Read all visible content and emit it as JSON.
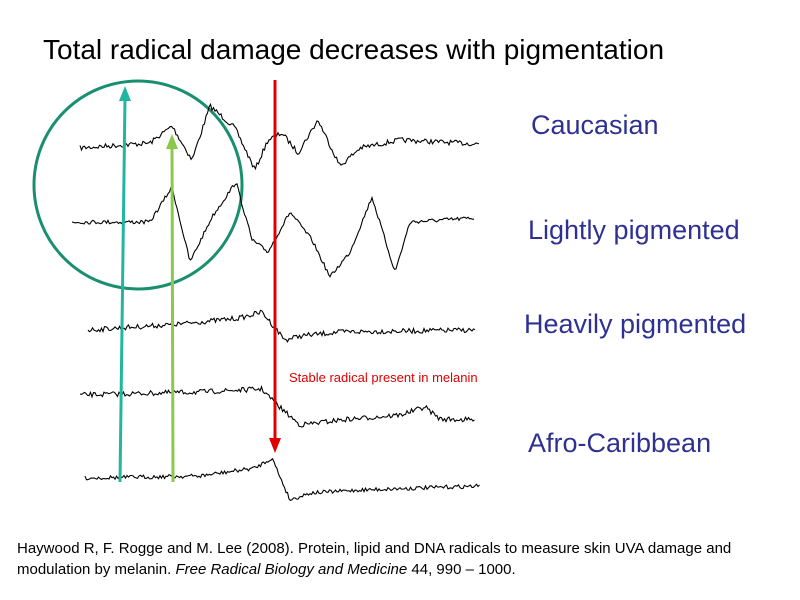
{
  "title": "Total radical damage decreases with pigmentation",
  "traces": [
    {
      "label": "Caucasian"
    },
    {
      "label": "Lightly pigmented"
    },
    {
      "label": "Heavily pigmented"
    },
    {
      "label": "Afro-Caribbean"
    }
  ],
  "annotation": "Stable radical present in melanin",
  "citation": {
    "part1": "Haywood R, F. Rogge and M. Lee (2008). Protein, lipid and DNA radicals to measure skin UVA damage and modulation  by melanin. ",
    "journal": "Free Radical Biology and Medicine",
    "part2": " 44, 990 – 1000."
  },
  "colors": {
    "label": "#2e3192",
    "circle": "#1a8f6f",
    "arrow_teal": "#22b5a0",
    "arrow_green": "#8cc84b",
    "arrow_red": "#e00000",
    "trace": "#000000"
  }
}
